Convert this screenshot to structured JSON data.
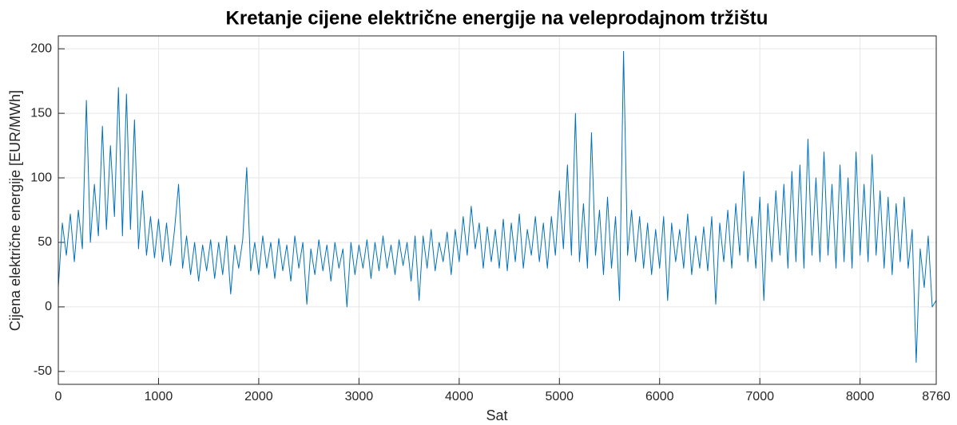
{
  "chart_data": {
    "type": "line",
    "title": "Kretanje cijene električne energije na veleprodajnom tržištu",
    "xlabel": "Sat",
    "ylabel": "Cijena električne energije [EUR/MWh]",
    "color": "#0072bd",
    "grid": true,
    "xlim": [
      0,
      8760
    ],
    "xticks": [
      0,
      1000,
      2000,
      3000,
      4000,
      5000,
      6000,
      7000,
      8000,
      8760
    ],
    "ylim": [
      -60,
      210
    ],
    "yticks": [
      -50,
      0,
      50,
      100,
      150,
      200
    ],
    "x": [
      0,
      40,
      80,
      120,
      160,
      200,
      240,
      280,
      320,
      360,
      400,
      440,
      480,
      520,
      560,
      600,
      640,
      680,
      720,
      760,
      800,
      840,
      880,
      920,
      960,
      1000,
      1040,
      1080,
      1120,
      1160,
      1200,
      1240,
      1280,
      1320,
      1360,
      1400,
      1440,
      1480,
      1520,
      1560,
      1600,
      1640,
      1680,
      1720,
      1760,
      1800,
      1840,
      1880,
      1920,
      1960,
      2000,
      2040,
      2080,
      2120,
      2160,
      2200,
      2240,
      2280,
      2320,
      2360,
      2400,
      2440,
      2480,
      2520,
      2560,
      2600,
      2640,
      2680,
      2720,
      2760,
      2800,
      2840,
      2880,
      2920,
      2960,
      3000,
      3040,
      3080,
      3120,
      3160,
      3200,
      3240,
      3280,
      3320,
      3360,
      3400,
      3440,
      3480,
      3520,
      3560,
      3600,
      3640,
      3680,
      3720,
      3760,
      3800,
      3840,
      3880,
      3920,
      3960,
      4000,
      4040,
      4080,
      4120,
      4160,
      4200,
      4240,
      4280,
      4320,
      4360,
      4400,
      4440,
      4480,
      4520,
      4560,
      4600,
      4640,
      4680,
      4720,
      4760,
      4800,
      4840,
      4880,
      4920,
      4960,
      5000,
      5040,
      5080,
      5120,
      5160,
      5200,
      5240,
      5280,
      5320,
      5360,
      5400,
      5440,
      5480,
      5520,
      5560,
      5600,
      5640,
      5680,
      5720,
      5760,
      5800,
      5840,
      5880,
      5920,
      5960,
      6000,
      6040,
      6080,
      6120,
      6160,
      6200,
      6240,
      6280,
      6320,
      6360,
      6400,
      6440,
      6480,
      6520,
      6560,
      6600,
      6640,
      6680,
      6720,
      6760,
      6800,
      6840,
      6880,
      6920,
      6960,
      7000,
      7040,
      7080,
      7120,
      7160,
      7200,
      7240,
      7280,
      7320,
      7360,
      7400,
      7440,
      7480,
      7520,
      7560,
      7600,
      7640,
      7680,
      7720,
      7760,
      7800,
      7840,
      7880,
      7920,
      7960,
      8000,
      8040,
      8080,
      8120,
      8160,
      8200,
      8240,
      8280,
      8320,
      8360,
      8400,
      8440,
      8480,
      8520,
      8560,
      8600,
      8640,
      8680,
      8720,
      8760
    ],
    "values": [
      15,
      65,
      40,
      72,
      35,
      75,
      45,
      160,
      50,
      95,
      55,
      140,
      60,
      125,
      70,
      170,
      55,
      165,
      60,
      145,
      45,
      90,
      40,
      70,
      38,
      68,
      35,
      65,
      32,
      60,
      95,
      30,
      55,
      25,
      50,
      20,
      48,
      28,
      52,
      22,
      50,
      25,
      55,
      10,
      48,
      30,
      52,
      108,
      28,
      50,
      25,
      55,
      30,
      50,
      22,
      53,
      28,
      48,
      20,
      55,
      30,
      50,
      2,
      45,
      25,
      52,
      28,
      48,
      20,
      50,
      30,
      45,
      0,
      50,
      25,
      48,
      30,
      52,
      22,
      50,
      28,
      55,
      30,
      48,
      25,
      52,
      32,
      50,
      20,
      55,
      5,
      55,
      30,
      60,
      28,
      50,
      35,
      58,
      25,
      60,
      35,
      70,
      40,
      78,
      45,
      65,
      30,
      62,
      35,
      60,
      30,
      68,
      28,
      65,
      35,
      72,
      30,
      60,
      40,
      70,
      35,
      65,
      30,
      70,
      40,
      90,
      45,
      110,
      40,
      150,
      35,
      80,
      30,
      135,
      40,
      75,
      25,
      85,
      30,
      70,
      5,
      198,
      40,
      75,
      35,
      70,
      30,
      65,
      25,
      60,
      30,
      70,
      5,
      65,
      35,
      60,
      30,
      72,
      25,
      55,
      30,
      62,
      28,
      70,
      2,
      65,
      35,
      75,
      30,
      80,
      40,
      105,
      35,
      70,
      30,
      85,
      5,
      80,
      35,
      90,
      40,
      95,
      30,
      105,
      35,
      110,
      30,
      130,
      40,
      100,
      35,
      120,
      40,
      95,
      30,
      110,
      35,
      100,
      30,
      120,
      40,
      95,
      35,
      118,
      40,
      90,
      30,
      85,
      25,
      80,
      35,
      85,
      30,
      60,
      -43,
      45,
      15,
      55,
      0,
      5
    ]
  }
}
